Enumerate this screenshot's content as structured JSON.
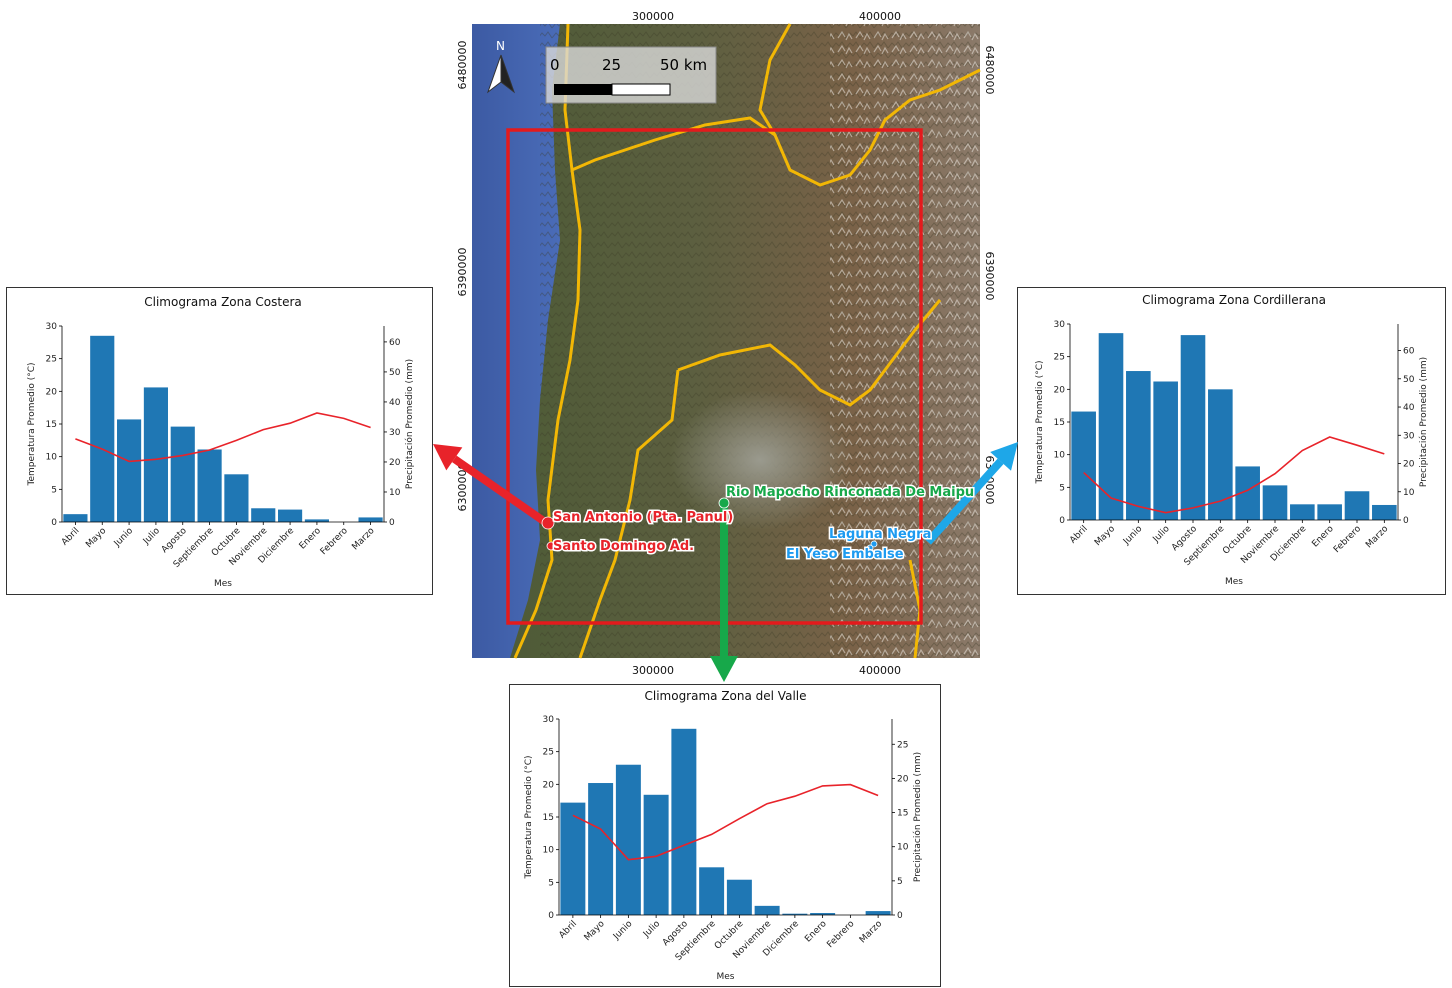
{
  "map": {
    "top_ticks": [
      "300000",
      "400000"
    ],
    "bottom_ticks": [
      "300000",
      "400000"
    ],
    "left_ticks": [
      "6480000",
      "6390000",
      "6300000"
    ],
    "right_ticks": [
      "6480000",
      "6390000",
      "6300000"
    ],
    "north_label": "N",
    "scale_labels": [
      "0",
      "25",
      "50 km"
    ],
    "stations": [
      {
        "name": "San Antonio (Pta. Panul)",
        "zone": "costera",
        "color": "#e8232a"
      },
      {
        "name": "Santo Domingo Ad.",
        "zone": "costera",
        "color": "#e8232a"
      },
      {
        "name": "Rio Mapocho Rinconada De Maipu",
        "zone": "valle",
        "color": "#17a84a"
      },
      {
        "name": "Laguna Negra",
        "zone": "cordillerana",
        "color": "#1e9bf0"
      },
      {
        "name": "El Yeso Embalse",
        "zone": "cordillerana",
        "color": "#1e9bf0"
      }
    ],
    "colors": {
      "study_area": "#e41a1c",
      "basin_outline": "#f2b705",
      "arrow_coastal": "#e8232a",
      "arrow_valley": "#17a84a",
      "arrow_mountain": "#1ea7e8"
    }
  },
  "chart_data": [
    {
      "id": "costera",
      "type": "bar",
      "title": "Climograma Zona Costera",
      "xlabel": "Mes",
      "ylabel": "Temperatura Promedio (°C)",
      "y2label": "Precipitación Promedio (mm)",
      "categories": [
        "Abril",
        "Mayo",
        "Junio",
        "Julio",
        "Agosto",
        "Septiembre",
        "Octubre",
        "Noviembre",
        "Diciembre",
        "Enero",
        "Febrero",
        "Marzo"
      ],
      "ylim": [
        0,
        30
      ],
      "yticks": [
        0,
        5,
        10,
        15,
        20,
        25,
        30
      ],
      "y2lim": [
        0,
        65.3
      ],
      "y2ticks": [
        0,
        10,
        20,
        30,
        40,
        50,
        60
      ],
      "series": [
        {
          "kind": "bar",
          "color": "#1f77b4",
          "values": [
            1.2,
            28.5,
            15.7,
            20.6,
            14.6,
            11.1,
            7.3,
            2.1,
            1.9,
            0.4,
            0.0,
            0.7
          ]
        },
        {
          "kind": "line",
          "axis": "y2",
          "color": "#e8232a",
          "values": [
            27.7,
            24.3,
            20.2,
            20.9,
            22.2,
            24.0,
            27.2,
            30.8,
            32.9,
            36.3,
            34.5,
            31.5
          ]
        }
      ]
    },
    {
      "id": "cordillerana",
      "type": "bar",
      "title": "Climograma Zona Cordillerana",
      "xlabel": "Mes",
      "ylabel": "Temperatura Promedio (°C)",
      "y2label": "Precipitación Promedio (mm)",
      "categories": [
        "Abril",
        "Mayo",
        "Junio",
        "Julio",
        "Agosto",
        "Septiembre",
        "Octubre",
        "Noviembre",
        "Diciembre",
        "Enero",
        "Febrero",
        "Marzo"
      ],
      "ylim": [
        0,
        30
      ],
      "yticks": [
        0,
        5,
        10,
        15,
        20,
        25,
        30
      ],
      "y2lim": [
        0,
        69.4
      ],
      "y2ticks": [
        0,
        10,
        20,
        30,
        40,
        50,
        60
      ],
      "series": [
        {
          "kind": "bar",
          "color": "#1f77b4",
          "values": [
            16.6,
            28.6,
            22.8,
            21.2,
            28.3,
            20.0,
            8.2,
            5.3,
            2.4,
            2.4,
            4.4,
            2.3
          ]
        },
        {
          "kind": "line",
          "axis": "y2",
          "color": "#e8232a",
          "values": [
            16.8,
            7.8,
            4.8,
            2.6,
            4.3,
            6.7,
            10.5,
            16.4,
            24.6,
            29.4,
            26.5,
            23.4
          ]
        }
      ]
    },
    {
      "id": "valle",
      "type": "bar",
      "title": "Climograma Zona del Valle",
      "xlabel": "Mes",
      "ylabel": "Temperatura Promedio (°C)",
      "y2label": "Precipitación Promedio (mm)",
      "categories": [
        "Abril",
        "Mayo",
        "Junio",
        "Julio",
        "Agosto",
        "Septiembre",
        "Octubre",
        "Noviembre",
        "Diciembre",
        "Enero",
        "Febrero",
        "Marzo"
      ],
      "ylim": [
        0,
        30
      ],
      "yticks": [
        0,
        5,
        10,
        15,
        20,
        25,
        30
      ],
      "y2lim": [
        0,
        28.7
      ],
      "y2ticks": [
        0,
        5,
        10,
        15,
        20,
        25
      ],
      "series": [
        {
          "kind": "bar",
          "color": "#1f77b4",
          "values": [
            17.2,
            20.2,
            23.0,
            18.4,
            28.5,
            7.3,
            5.4,
            1.4,
            0.2,
            0.3,
            0.0,
            0.6
          ]
        },
        {
          "kind": "line",
          "axis": "y2",
          "color": "#e8232a",
          "values": [
            14.6,
            12.6,
            8.1,
            8.6,
            10.2,
            11.8,
            14.1,
            16.3,
            17.4,
            18.9,
            19.1,
            17.5
          ]
        }
      ]
    }
  ]
}
